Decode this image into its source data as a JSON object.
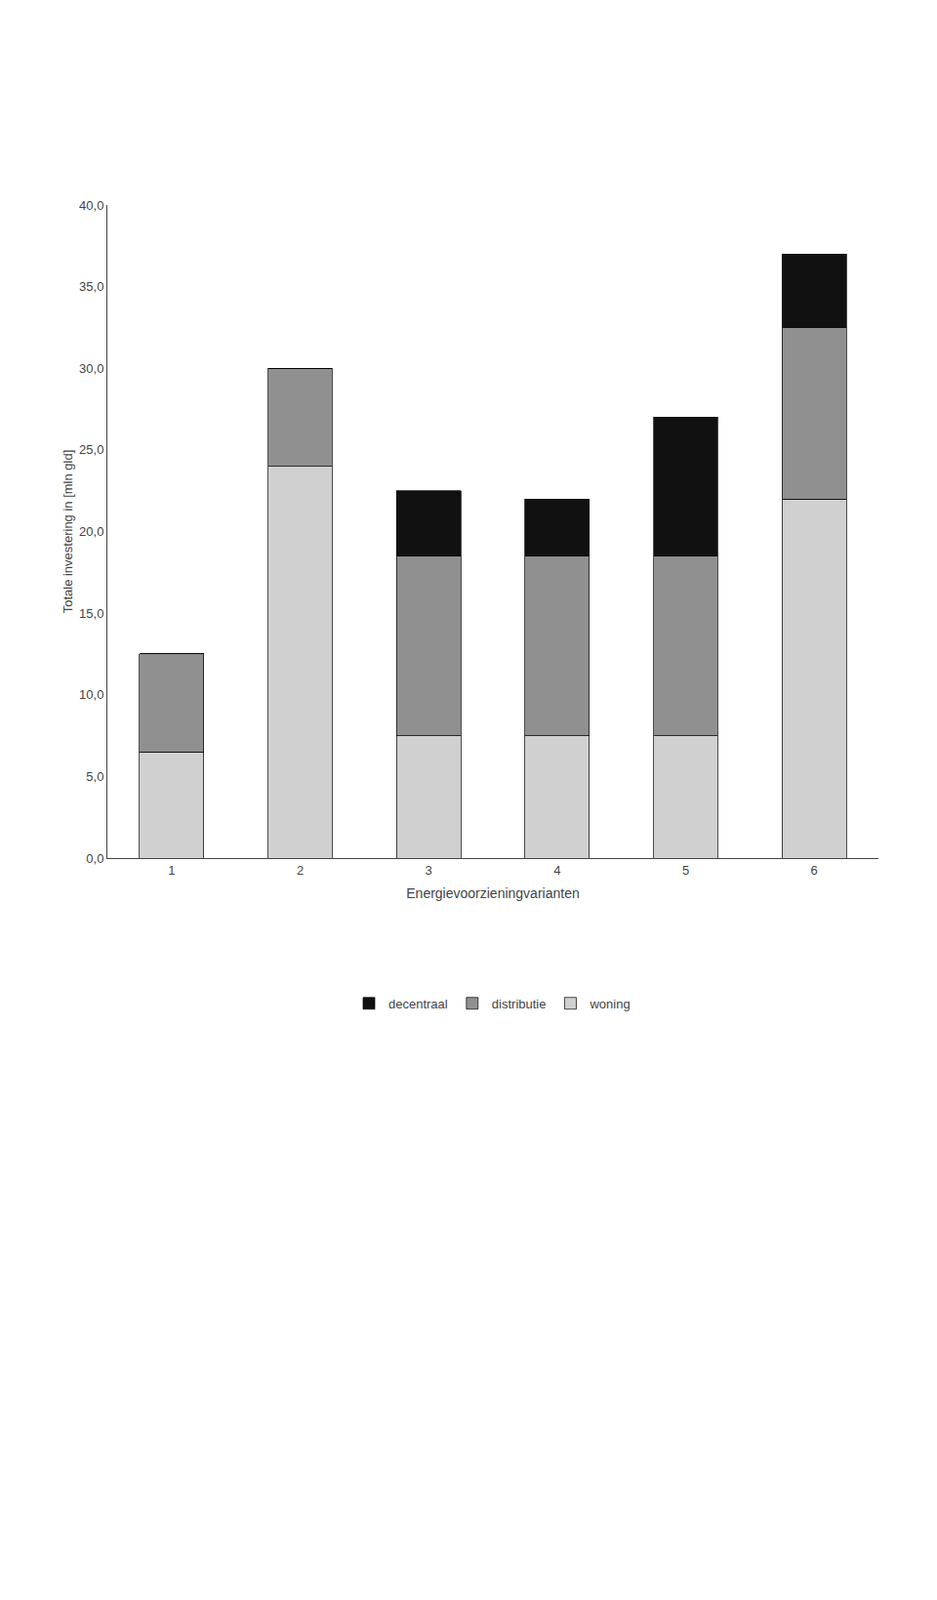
{
  "chart_data": {
    "type": "bar",
    "stacked": true,
    "categories": [
      1,
      2,
      3,
      4,
      5,
      6
    ],
    "series": [
      {
        "name": "woning",
        "color": "#d0d0d0",
        "values": [
          6.5,
          24.0,
          7.5,
          7.5,
          7.5,
          22.0
        ]
      },
      {
        "name": "distributie",
        "color": "#909090",
        "values": [
          6.0,
          6.0,
          11.0,
          11.0,
          11.0,
          10.5
        ]
      },
      {
        "name": "decentraal",
        "color": "#111111",
        "values": [
          0.0,
          0.0,
          4.0,
          3.5,
          8.5,
          4.5
        ]
      }
    ],
    "x_label": "Energievoorzieningvarianten",
    "y_label": "Totale investering in [mln gld]",
    "ylim": [
      0,
      40
    ],
    "yticks": [
      {
        "value": 0,
        "label": "0,0"
      },
      {
        "value": 5,
        "label": "5,0"
      },
      {
        "value": 10,
        "label": "10,0"
      },
      {
        "value": 15,
        "label": "15,0"
      },
      {
        "value": 20,
        "label": "20,0"
      },
      {
        "value": 25,
        "label": "25,0"
      },
      {
        "value": 30,
        "label": "30,0"
      },
      {
        "value": 35,
        "label": "35,0"
      },
      {
        "value": 40,
        "label": "40,0"
      }
    ],
    "grid": false,
    "legend": "bottom"
  }
}
